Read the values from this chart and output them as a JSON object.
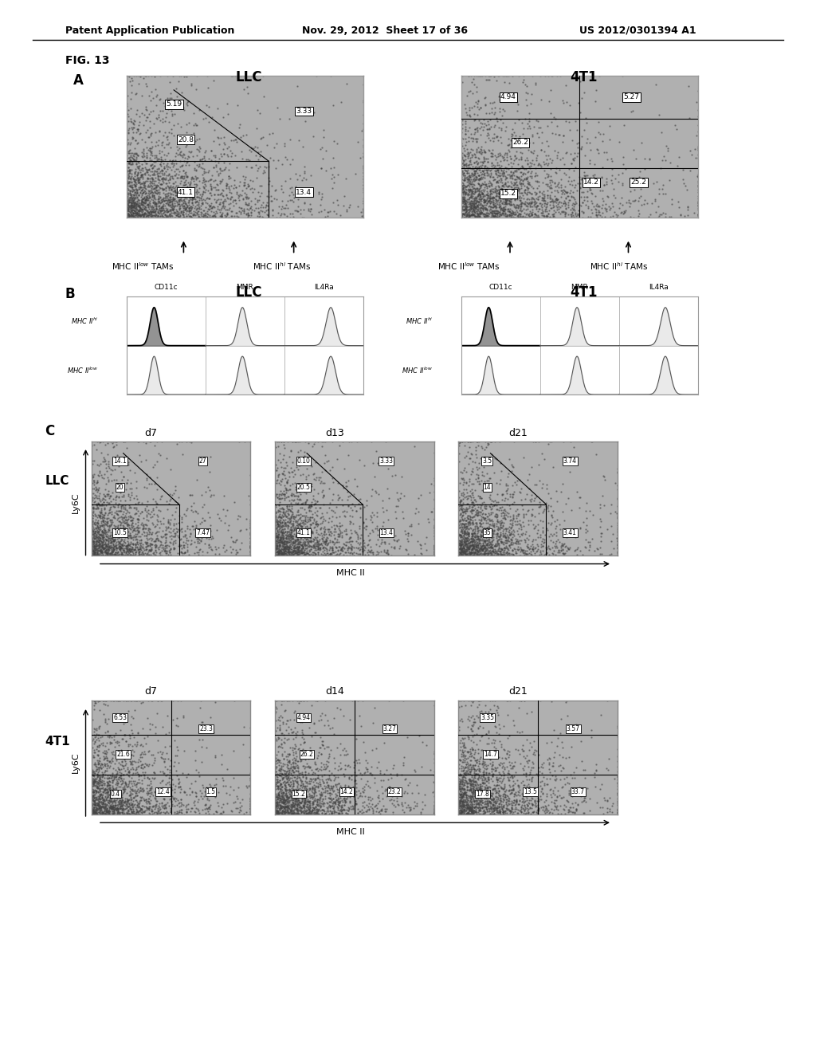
{
  "header_left": "Patent Application Publication",
  "header_mid": "Nov. 29, 2012  Sheet 17 of 36",
  "header_right": "US 2012/0301394 A1",
  "fig_label": "FIG. 13",
  "panel_A_label": "A",
  "panel_B_label": "B",
  "panel_C_label": "C",
  "LLC_title": "LLC",
  "T41_title": "4T1",
  "panel_A_LLC_values": [
    "5.19",
    "3.33",
    "20.8",
    "41.1",
    "13.4"
  ],
  "panel_A_4T1_values": [
    "4.94",
    "5.27",
    "26.2",
    "14.2",
    "25.2",
    "15.2"
  ],
  "panel_B_LLC_col_labels": [
    "CD11c",
    "MMR",
    "IL4Ra"
  ],
  "panel_B_4T1_col_labels": [
    "CD11c",
    "MMR",
    "IL4Ra"
  ],
  "panel_C_LLC_time": [
    "d7",
    "d13",
    "d21"
  ],
  "panel_C_4T1_time": [
    "d7",
    "d14",
    "d21"
  ],
  "panel_C_LLC_values": [
    [
      "14.1",
      "27",
      "20",
      "10.5",
      "7.47"
    ],
    [
      "0.10",
      "3.33",
      "20.5",
      "41.1",
      "13.4"
    ],
    [
      "3.5",
      "3.74",
      "14",
      "35",
      "3.41"
    ]
  ],
  "panel_C_4T1_values": [
    [
      "6.53",
      "23.3",
      "21.6",
      "0.4",
      "12.4",
      "1.5"
    ],
    [
      "4.94",
      "3.27",
      "26.2",
      "15.2",
      "14.2",
      "23.2"
    ],
    [
      "3.35",
      "3.57",
      "14.7",
      "17.8",
      "13.5",
      "33.7"
    ]
  ],
  "LLC_row_label": "LLC",
  "T41_row_label": "4T1",
  "MHC_II_label": "MHC II",
  "LyC6_label": "Ly6C",
  "bg_color": "#ffffff",
  "text_color": "#000000"
}
